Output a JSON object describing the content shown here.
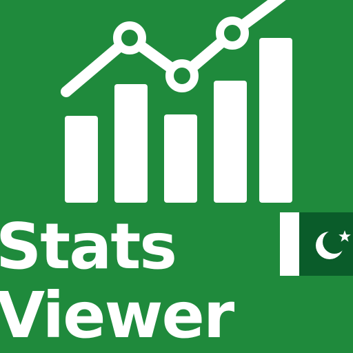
{
  "app": {
    "title_line_1": "Stats",
    "title_line_2": "Viewer"
  },
  "logo": {
    "icon": "bar-chart-with-trend-line-icon",
    "flag_icon": "pakistan-flag-icon"
  },
  "colors": {
    "background": "#1f8a3c",
    "foreground": "#ffffff",
    "flag_green": "#0a5c2a"
  }
}
